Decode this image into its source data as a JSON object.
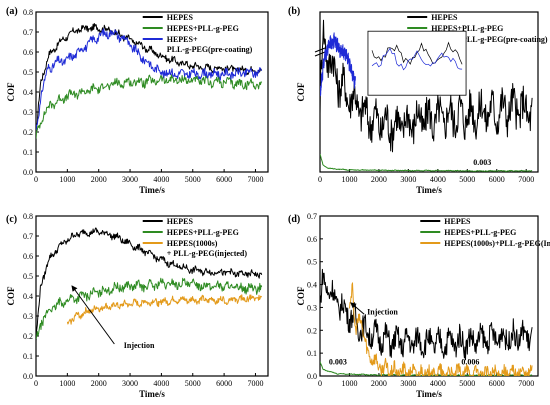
{
  "figure": {
    "panels": [
      "(a)",
      "(b)",
      "(c)",
      "(d)"
    ]
  },
  "colors": {
    "HEPES": "#000000",
    "HEPES+PLL-g-PEG": "#2e8b22",
    "pre-coating": "#1f2bd6",
    "injected": "#e39a1a",
    "inset_bg": "#ffffff"
  },
  "chart_data": [
    {
      "panel": "(a)",
      "type": "line",
      "xlabel": "Time/s",
      "ylabel": "COF",
      "xlim": [
        0,
        7400
      ],
      "ylim": [
        0,
        0.8
      ],
      "xticks": [
        0,
        1000,
        2000,
        3000,
        4000,
        5000,
        6000,
        7000
      ],
      "yticks": [
        0,
        0.1,
        0.2,
        0.3,
        0.4,
        0.5,
        0.6,
        0.7,
        0.8
      ],
      "ytick_labels": [
        "0.0",
        "0.1",
        "0.2",
        "0.3",
        "0.4",
        "0.5",
        "0.6",
        "0.7",
        "0.8"
      ],
      "legend": [
        "HEPES",
        "HEPES+PLL-g-PEG",
        "HEPES+\nPLL-g-PEG(pre-coating)"
      ],
      "legend_position": "top-right",
      "series": [
        {
          "name": "HEPES",
          "color": "#000000",
          "noise": 0.015,
          "x": [
            0,
            150,
            400,
            700,
            1000,
            1300,
            1700,
            2100,
            2500,
            3000,
            3500,
            4000,
            4500,
            5000,
            5500,
            6000,
            6500,
            7200
          ],
          "y": [
            0.18,
            0.45,
            0.58,
            0.64,
            0.68,
            0.71,
            0.72,
            0.72,
            0.7,
            0.66,
            0.62,
            0.58,
            0.55,
            0.53,
            0.52,
            0.52,
            0.51,
            0.51
          ]
        },
        {
          "name": "HEPES+PLL-g-PEG",
          "color": "#2e8b22",
          "noise": 0.02,
          "x": [
            0,
            200,
            500,
            1000,
            1500,
            2000,
            2500,
            3000,
            3500,
            4000,
            4500,
            5000,
            5500,
            6000,
            6500,
            7200
          ],
          "y": [
            0.17,
            0.28,
            0.34,
            0.38,
            0.4,
            0.42,
            0.44,
            0.45,
            0.45,
            0.46,
            0.46,
            0.46,
            0.45,
            0.45,
            0.44,
            0.44
          ]
        },
        {
          "name": "HEPES+\nPLL-g-PEG(pre-coating)",
          "color": "#1f2bd6",
          "noise": 0.02,
          "x": [
            0,
            200,
            400,
            700,
            1000,
            1500,
            2000,
            2400,
            2800,
            3200,
            3600,
            4000,
            4500,
            5000,
            6000,
            7200
          ],
          "y": [
            0.2,
            0.42,
            0.52,
            0.55,
            0.56,
            0.62,
            0.68,
            0.7,
            0.67,
            0.6,
            0.54,
            0.5,
            0.49,
            0.49,
            0.49,
            0.5
          ]
        }
      ]
    },
    {
      "panel": "(b)",
      "type": "line",
      "xlabel": "Time/s",
      "ylabel": "COF",
      "xlim": [
        0,
        7400
      ],
      "ylim": [
        0,
        0.45
      ],
      "axis_break": true,
      "xticks": [
        0,
        1000,
        2000,
        3000,
        4000,
        5000,
        6000,
        7000
      ],
      "legend": [
        "HEPES",
        "HEPES+PLL-g-PEG",
        "HEPES+PLL-g-PEG(pre-coating)"
      ],
      "legend_position": "top-right",
      "annotations": [
        {
          "text": "0.003",
          "x": 5200,
          "y": 0.02
        }
      ],
      "inset": {
        "type": "line",
        "series_names": [
          "HEPES",
          "HEPES+PLL-g-PEG(pre-coating)"
        ]
      },
      "series": [
        {
          "name": "HEPES",
          "color": "#000000",
          "noise": 0.05,
          "x": [
            0,
            100,
            300,
            600,
            900,
            1200,
            1500,
            2000,
            2500,
            3000,
            3500,
            4000,
            4500,
            5000,
            5500,
            6000,
            6500,
            7200
          ],
          "y": [
            0.2,
            0.38,
            0.32,
            0.26,
            0.22,
            0.2,
            0.16,
            0.14,
            0.13,
            0.14,
            0.15,
            0.15,
            0.16,
            0.16,
            0.17,
            0.17,
            0.18,
            0.17
          ]
        },
        {
          "name": "HEPES+PLL-g-PEG",
          "color": "#2e8b22",
          "noise": 0.001,
          "x": [
            0,
            100,
            300,
            600,
            1000,
            2000,
            3000,
            4000,
            5000,
            6000,
            7200
          ],
          "y": [
            0.05,
            0.02,
            0.01,
            0.008,
            0.006,
            0.005,
            0.004,
            0.004,
            0.003,
            0.003,
            0.003
          ]
        },
        {
          "name": "HEPES+PLL-g-PEG(pre-coating)",
          "color": "#1f2bd6",
          "noise": 0.015,
          "x": [
            0,
            150,
            300,
            500,
            700,
            900,
            1200
          ],
          "y": [
            0.22,
            0.32,
            0.36,
            0.37,
            0.34,
            0.33,
            0.25
          ]
        }
      ]
    },
    {
      "panel": "(c)",
      "type": "line",
      "xlabel": "Time/s",
      "ylabel": "COF",
      "xlim": [
        0,
        7400
      ],
      "ylim": [
        0,
        0.8
      ],
      "xticks": [
        0,
        1000,
        2000,
        3000,
        4000,
        5000,
        6000,
        7000
      ],
      "yticks": [
        0,
        0.1,
        0.2,
        0.3,
        0.4,
        0.5,
        0.6,
        0.7,
        0.8
      ],
      "ytick_labels": [
        "0.0",
        "0.1",
        "0.2",
        "0.3",
        "0.4",
        "0.5",
        "0.6",
        "0.7",
        "0.8"
      ],
      "legend": [
        "HEPES",
        "HEPES+PLL-g-PEG",
        "HEPES(1000s)\n+ PLL-g-PEG(injected)"
      ],
      "legend_position": "top-right",
      "annotations": [
        {
          "text": "Injection",
          "x": 2800,
          "y": 0.14
        }
      ],
      "series": [
        {
          "name": "HEPES",
          "color": "#000000",
          "noise": 0.015,
          "x": [
            0,
            150,
            400,
            700,
            1000,
            1300,
            1700,
            2100,
            2500,
            3000,
            3500,
            4000,
            4500,
            5000,
            5500,
            6000,
            6500,
            7200
          ],
          "y": [
            0.18,
            0.45,
            0.58,
            0.64,
            0.68,
            0.71,
            0.72,
            0.72,
            0.7,
            0.66,
            0.62,
            0.58,
            0.55,
            0.53,
            0.52,
            0.52,
            0.51,
            0.51
          ]
        },
        {
          "name": "HEPES+PLL-g-PEG",
          "color": "#2e8b22",
          "noise": 0.02,
          "x": [
            0,
            200,
            500,
            1000,
            1500,
            2000,
            2500,
            3000,
            3500,
            4000,
            4500,
            5000,
            5500,
            6000,
            6500,
            7200
          ],
          "y": [
            0.17,
            0.28,
            0.34,
            0.38,
            0.4,
            0.42,
            0.44,
            0.45,
            0.45,
            0.46,
            0.46,
            0.46,
            0.45,
            0.45,
            0.44,
            0.44
          ]
        },
        {
          "name": "HEPES(1000s)\n+ PLL-g-PEG(injected)",
          "color": "#e39a1a",
          "noise": 0.015,
          "x": [
            1000,
            1100,
            1300,
            1600,
            2000,
            2500,
            3000,
            3500,
            4000,
            4500,
            5000,
            6000,
            7200
          ],
          "y": [
            0.25,
            0.28,
            0.3,
            0.32,
            0.34,
            0.35,
            0.36,
            0.37,
            0.37,
            0.38,
            0.38,
            0.38,
            0.39
          ]
        }
      ]
    },
    {
      "panel": "(d)",
      "type": "line",
      "xlabel": "Time/s",
      "ylabel": "COF",
      "xlim": [
        0,
        7400
      ],
      "ylim": [
        0,
        0.7
      ],
      "xticks": [
        0,
        1000,
        2000,
        3000,
        4000,
        5000,
        6000,
        7000
      ],
      "yticks": [
        0,
        0.1,
        0.2,
        0.3,
        0.4,
        0.5,
        0.6,
        0.7
      ],
      "ytick_labels": [
        "0.0",
        "0.1",
        "0.2",
        "0.3",
        "0.4",
        "0.5",
        "0.6",
        "0.7"
      ],
      "legend": [
        "HEPES",
        "HEPES+PLL-g-PEG",
        "HEPES(1000s)+PLL-g-PEG(Injected)"
      ],
      "legend_position": "top-right",
      "annotations": [
        {
          "text": "Injection",
          "x": 1600,
          "y": 0.27
        },
        {
          "text": "0.003",
          "x": 300,
          "y": 0.05
        },
        {
          "text": "0.006",
          "x": 4800,
          "y": 0.05
        }
      ],
      "series": [
        {
          "name": "HEPES",
          "color": "#000000",
          "noise": 0.05,
          "x": [
            0,
            100,
            300,
            600,
            900,
            1200,
            1500,
            2000,
            2500,
            3000,
            3500,
            4000,
            4500,
            5000,
            5500,
            6000,
            6500,
            7200
          ],
          "y": [
            0.3,
            0.42,
            0.38,
            0.32,
            0.28,
            0.24,
            0.2,
            0.17,
            0.15,
            0.15,
            0.15,
            0.14,
            0.15,
            0.15,
            0.16,
            0.17,
            0.17,
            0.18
          ]
        },
        {
          "name": "HEPES+PLL-g-PEG",
          "color": "#2e8b22",
          "noise": 0.002,
          "x": [
            0,
            100,
            300,
            600,
            1000,
            1500,
            2000,
            3000,
            4000,
            5000,
            6000,
            7200
          ],
          "y": [
            0.06,
            0.03,
            0.02,
            0.01,
            0.008,
            0.006,
            0.005,
            0.004,
            0.003,
            0.003,
            0.003,
            0.003
          ]
        },
        {
          "name": "HEPES(1000s)+PLL-g-PEG(Injected)",
          "color": "#e39a1a",
          "noise": 0.03,
          "x": [
            1000,
            1100,
            1200,
            1400,
            1600,
            1800,
            2000,
            2500,
            3000,
            4000,
            5000,
            6000,
            7200
          ],
          "y": [
            0.3,
            0.4,
            0.2,
            0.25,
            0.1,
            0.08,
            0.04,
            0.02,
            0.015,
            0.012,
            0.01,
            0.01,
            0.01
          ]
        }
      ]
    }
  ]
}
